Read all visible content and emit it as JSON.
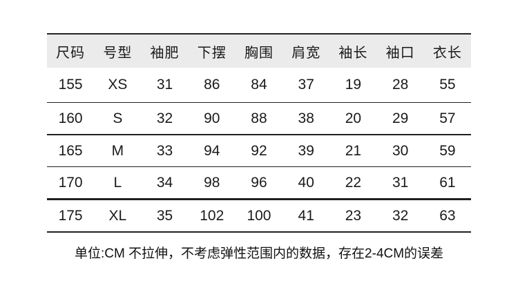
{
  "chart_data": {
    "type": "table",
    "columns": [
      "尺码",
      "号型",
      "袖肥",
      "下摆",
      "胸围",
      "肩宽",
      "袖长",
      "袖口",
      "衣长"
    ],
    "rows": [
      [
        "155",
        "XS",
        "31",
        "86",
        "84",
        "37",
        "19",
        "28",
        "55"
      ],
      [
        "160",
        "S",
        "32",
        "90",
        "88",
        "38",
        "20",
        "29",
        "57"
      ],
      [
        "165",
        "M",
        "33",
        "94",
        "92",
        "39",
        "21",
        "30",
        "59"
      ],
      [
        "170",
        "L",
        "34",
        "98",
        "96",
        "40",
        "22",
        "31",
        "61"
      ],
      [
        "175",
        "XL",
        "35",
        "102",
        "100",
        "41",
        "23",
        "32",
        "63"
      ]
    ]
  },
  "footer": {
    "note": "单位:CM  不拉伸，不考虑弹性范围内的数据，存在2-4CM的误差"
  },
  "colors": {
    "header_bg": "#ebebeb",
    "rule": "#222222",
    "text": "#1a1a1a"
  }
}
